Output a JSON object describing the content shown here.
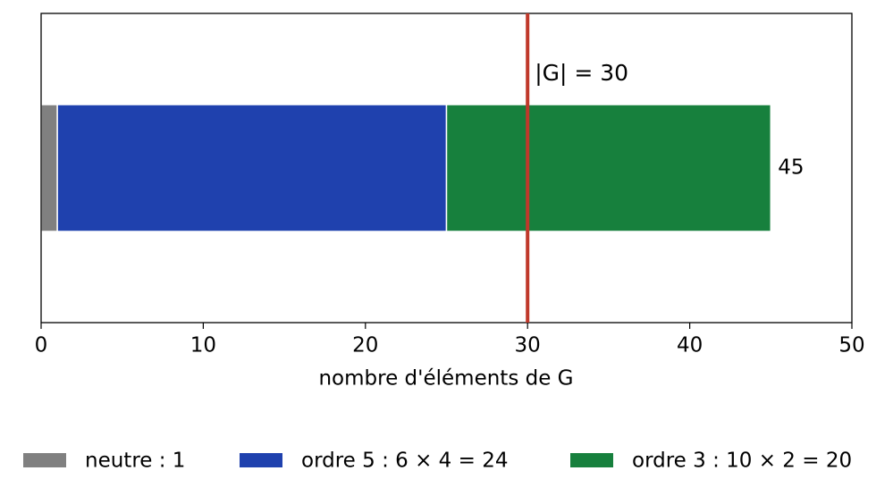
{
  "chart_data": {
    "type": "stacked-barh",
    "xlabel": "nombre d'éléments de G",
    "series": [
      {
        "name": "neutre : 1",
        "color": "#808080",
        "values": [
          1
        ]
      },
      {
        "name": "ordre 5 : 6 × 4 = 24",
        "color": "#1f41ae",
        "values": [
          24
        ]
      },
      {
        "name": "ordre 3 : 10 × 2 = 20",
        "color": "#17803d",
        "values": [
          20
        ]
      }
    ],
    "total": 45,
    "reference_line": {
      "value": 30,
      "label": "|G| = 30",
      "color": "#c0392b"
    },
    "xlim": [
      0,
      50
    ],
    "xticks": [
      0,
      10,
      20,
      30,
      40,
      50
    ],
    "legend": "bottom"
  }
}
